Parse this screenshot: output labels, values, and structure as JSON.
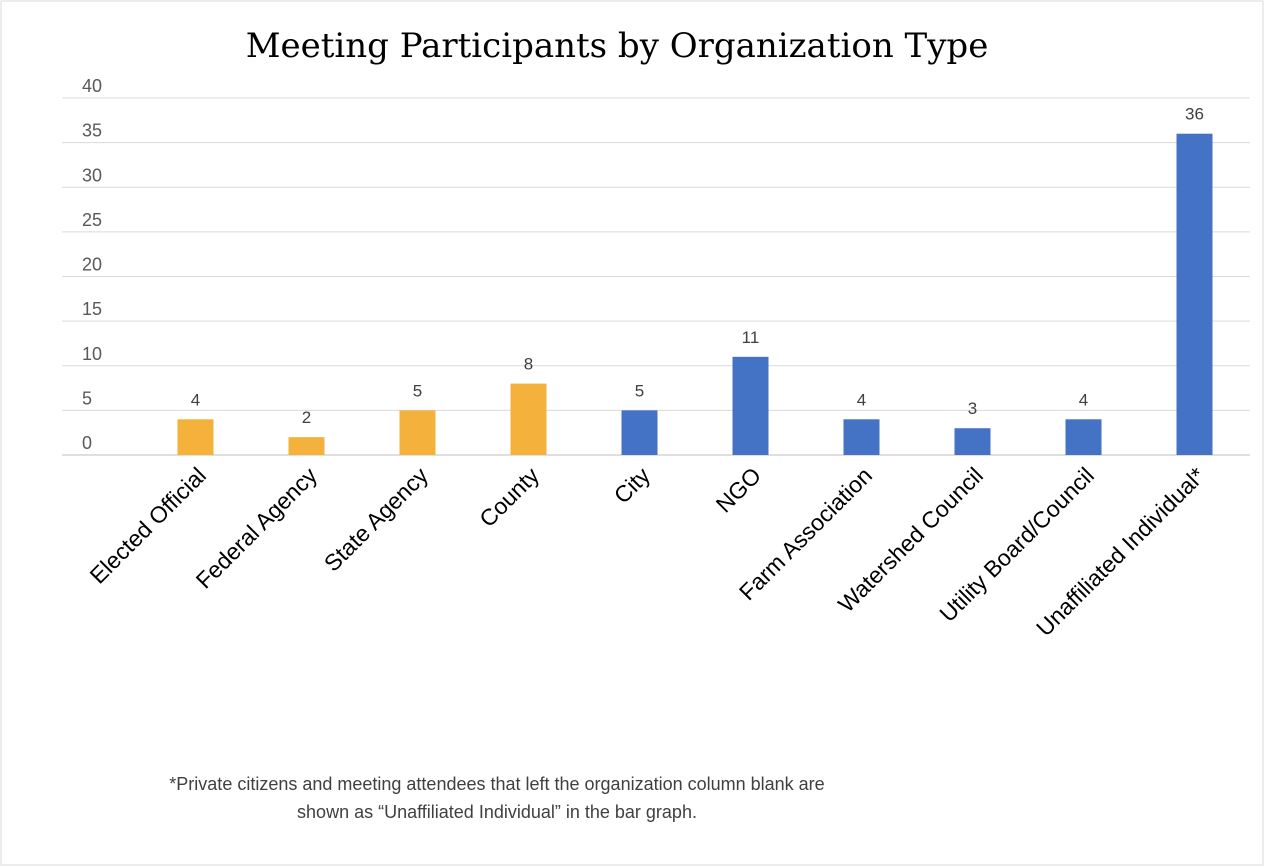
{
  "chart_data": {
    "type": "bar",
    "title": "Meeting Participants by Organization Type",
    "categories": [
      "Elected Official",
      "Federal Agency",
      "State Agency",
      "County",
      "City",
      "NGO",
      "Farm Association",
      "Watershed Council",
      "Utility Board/Council",
      "Unaffiliated Individual*"
    ],
    "values": [
      4,
      2,
      5,
      8,
      5,
      11,
      4,
      3,
      4,
      36
    ],
    "colors": [
      "#f4b13b",
      "#f4b13b",
      "#f4b13b",
      "#f4b13b",
      "#4472c4",
      "#4472c4",
      "#4472c4",
      "#4472c4",
      "#4472c4",
      "#4472c4"
    ],
    "ylim": [
      0,
      40
    ],
    "yticks": [
      0,
      5,
      10,
      15,
      20,
      25,
      30,
      35,
      40
    ],
    "grid": true,
    "footnote": [
      "*Private citizens and meeting attendees that left the organization column blank are",
      "shown as “Unaffiliated Individual” in the bar graph."
    ]
  }
}
